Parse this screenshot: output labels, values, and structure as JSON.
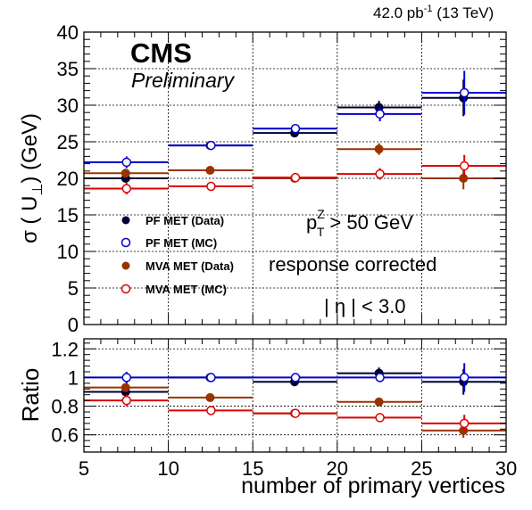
{
  "header": {
    "lumi": "42.0 pb",
    "lumi_sup": "-1",
    "energy": " (13 TeV)"
  },
  "logo": {
    "cms": "CMS",
    "preliminary": "Preliminary"
  },
  "annotations": {
    "pt_symbol": "p",
    "pt_sub": "T",
    "pt_sup": "Z",
    "pt_cut": "> 50 GeV",
    "response": "response corrected",
    "eta_cut": "| η | < 3.0"
  },
  "chart_data": [
    {
      "type": "scatter",
      "panel": "main",
      "ylabel_text": "σ ( U",
      "ylabel_sub": "⊥",
      "ylabel_unit": ") (GeV)",
      "xlim": [
        5,
        30
      ],
      "ylim": [
        0,
        40
      ],
      "x_ticks": [
        5,
        10,
        15,
        20,
        25,
        30
      ],
      "y_ticks": [
        0,
        5,
        10,
        15,
        20,
        25,
        30,
        35,
        40
      ],
      "grid": true,
      "legend_position": "left-middle",
      "bins": [
        [
          5,
          10
        ],
        [
          10,
          15
        ],
        [
          15,
          20
        ],
        [
          20,
          25
        ],
        [
          25,
          30
        ]
      ],
      "series": [
        {
          "name": "PF MET (Data)",
          "color": "#000033",
          "marker": "filled",
          "values": [
            20.0,
            24.5,
            26.2,
            29.7,
            31.0
          ],
          "errors": [
            0.5,
            0.5,
            0.5,
            0.9,
            2.5
          ]
        },
        {
          "name": "PF MET (MC)",
          "color": "#0000cc",
          "marker": "open",
          "values": [
            22.2,
            24.5,
            26.8,
            28.8,
            31.7
          ],
          "errors": [
            0.8,
            0.3,
            0.5,
            1.0,
            3.0
          ]
        },
        {
          "name": "MVA MET (Data)",
          "color": "#993300",
          "marker": "filled",
          "values": [
            20.7,
            21.1,
            20.0,
            24.0,
            20.0
          ],
          "errors": [
            0.5,
            0.5,
            0.5,
            0.8,
            1.5
          ]
        },
        {
          "name": "MVA MET (MC)",
          "color": "#dd0000",
          "marker": "open",
          "values": [
            18.6,
            18.9,
            20.1,
            20.6,
            21.7
          ],
          "errors": [
            0.8,
            0.3,
            0.5,
            0.8,
            1.5
          ]
        }
      ]
    },
    {
      "type": "scatter",
      "panel": "ratio",
      "ylabel": "Ratio",
      "xlabel": "number of primary vertices",
      "xlim": [
        5,
        30
      ],
      "ylim": [
        0.48,
        1.27
      ],
      "x_ticks": [
        5,
        10,
        15,
        20,
        25,
        30
      ],
      "y_ticks": [
        0.6,
        0.8,
        1,
        1.2
      ],
      "y_tick_labels": [
        "0.6",
        "0.8",
        "1",
        "1.2"
      ],
      "grid": true,
      "bins": [
        [
          5,
          10
        ],
        [
          10,
          15
        ],
        [
          15,
          20
        ],
        [
          20,
          25
        ],
        [
          25,
          30
        ]
      ],
      "series": [
        {
          "name": "PF MET (Data)",
          "color": "#000033",
          "marker": "filled",
          "values": [
            0.9,
            1.0,
            0.97,
            1.03,
            0.97
          ],
          "errors": [
            0.03,
            0.02,
            0.02,
            0.04,
            0.09
          ]
        },
        {
          "name": "PF MET (MC)",
          "color": "#0000cc",
          "marker": "open",
          "values": [
            1.0,
            1.0,
            1.0,
            1.0,
            1.0
          ],
          "errors": [
            0.04,
            0.015,
            0.02,
            0.03,
            0.1
          ]
        },
        {
          "name": "MVA MET (Data)",
          "color": "#993300",
          "marker": "filled",
          "values": [
            0.93,
            0.86,
            0.75,
            0.83,
            0.63
          ],
          "errors": [
            0.03,
            0.02,
            0.02,
            0.03,
            0.05
          ]
        },
        {
          "name": "MVA MET (MC)",
          "color": "#dd0000",
          "marker": "open",
          "values": [
            0.84,
            0.77,
            0.75,
            0.72,
            0.68
          ],
          "errors": [
            0.04,
            0.015,
            0.02,
            0.03,
            0.06
          ]
        }
      ]
    }
  ]
}
